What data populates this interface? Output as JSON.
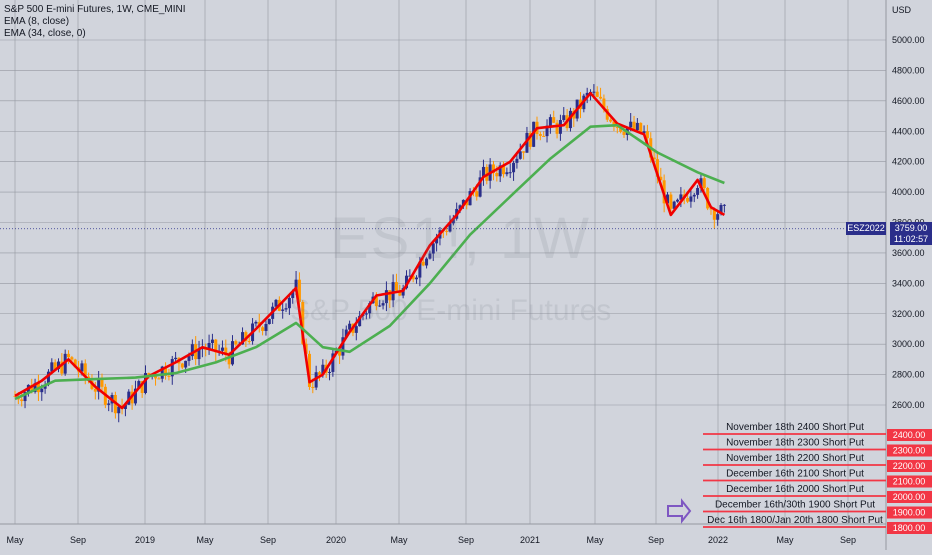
{
  "legend": {
    "symbol": "S&P 500 E-mini Futures, 1W, CME_MINI",
    "ema8": "EMA (8, close)",
    "ema34": "EMA (34, close, 0)"
  },
  "watermark": {
    "big": "ES1!, 1W",
    "small": "S&P 500 E-mini Futures"
  },
  "tags": {
    "symbol_tag": "ESZ2022",
    "last_price": "3759.00",
    "countdown": "11:02:57"
  },
  "colors": {
    "background": "#d1d4dc",
    "up": "#2a2e8a",
    "down": "#ff9800",
    "ema8": "#f00000",
    "ema34": "#4caf50",
    "level": "#f23645",
    "arrow": "#7e57c2"
  },
  "chart_data": {
    "type": "line",
    "title": "S&P 500 E-mini Futures, 1W, CME_MINI",
    "xlabel": "",
    "ylabel": "USD",
    "ylim": [
      2200,
      5200
    ],
    "x_ticks": [
      "May",
      "Sep",
      "2019",
      "May",
      "Sep",
      "2020",
      "May",
      "Sep",
      "2021",
      "May",
      "Sep",
      "2022",
      "May",
      "Sep"
    ],
    "y_ticks": [
      "5000.00",
      "4800.00",
      "4600.00",
      "4400.00",
      "4200.00",
      "4000.00",
      "3800.00",
      "3600.00",
      "3400.00",
      "3200.00",
      "3000.00",
      "2800.00",
      "2600.00"
    ],
    "currency_label": "USD",
    "grid": true,
    "series": [
      {
        "name": "EMA (8, close)",
        "color": "#f00000",
        "points": [
          [
            "2018-05",
            2660
          ],
          [
            "2018-07",
            2760
          ],
          [
            "2018-09",
            2900
          ],
          [
            "2018-11",
            2720
          ],
          [
            "2019-01",
            2580
          ],
          [
            "2019-03",
            2790
          ],
          [
            "2019-05",
            2880
          ],
          [
            "2019-07",
            2980
          ],
          [
            "2019-09",
            2930
          ],
          [
            "2019-11",
            3100
          ],
          [
            "2020-01",
            3280
          ],
          [
            "2020-02",
            3370
          ],
          [
            "2020-03",
            2750
          ],
          [
            "2020-04",
            2800
          ],
          [
            "2020-06",
            3080
          ],
          [
            "2020-08",
            3320
          ],
          [
            "2020-10",
            3350
          ],
          [
            "2020-12",
            3650
          ],
          [
            "2021-02",
            3850
          ],
          [
            "2021-04",
            4100
          ],
          [
            "2021-06",
            4200
          ],
          [
            "2021-08",
            4420
          ],
          [
            "2021-10",
            4440
          ],
          [
            "2021-12",
            4650
          ],
          [
            "2022-02",
            4450
          ],
          [
            "2022-04",
            4380
          ],
          [
            "2022-06",
            3850
          ],
          [
            "2022-08",
            4080
          ],
          [
            "2022-09",
            3900
          ],
          [
            "2022-10",
            3850
          ]
        ]
      },
      {
        "name": "EMA (34, close, 0)",
        "color": "#4caf50",
        "points": [
          [
            "2018-05",
            2640
          ],
          [
            "2018-08",
            2760
          ],
          [
            "2018-11",
            2770
          ],
          [
            "2019-02",
            2780
          ],
          [
            "2019-05",
            2810
          ],
          [
            "2019-08",
            2880
          ],
          [
            "2019-11",
            2980
          ],
          [
            "2020-02",
            3140
          ],
          [
            "2020-04",
            2980
          ],
          [
            "2020-06",
            2950
          ],
          [
            "2020-09",
            3120
          ],
          [
            "2020-12",
            3400
          ],
          [
            "2021-03",
            3720
          ],
          [
            "2021-06",
            3970
          ],
          [
            "2021-09",
            4220
          ],
          [
            "2021-12",
            4430
          ],
          [
            "2022-02",
            4440
          ],
          [
            "2022-05",
            4260
          ],
          [
            "2022-08",
            4130
          ],
          [
            "2022-10",
            4060
          ]
        ]
      }
    ],
    "last_price": 3759,
    "price_levels": [
      {
        "label": "November 18th 2400 Short Put",
        "value": "2400.00"
      },
      {
        "label": "November 18th 2300 Short Put",
        "value": "2300.00"
      },
      {
        "label": "November 18th 2200 Short Put",
        "value": "2200.00"
      },
      {
        "label": "December 16th 2100 Short Put",
        "value": "2100.00"
      },
      {
        "label": "December 16th 2000 Short Put",
        "value": "2000.00"
      },
      {
        "label": "December 16th/30th 1900 Short Put",
        "value": "1900.00"
      },
      {
        "label": "Dec 16th 1800/Jan 20th 1800 Short Put",
        "value": "1800.00"
      }
    ]
  }
}
